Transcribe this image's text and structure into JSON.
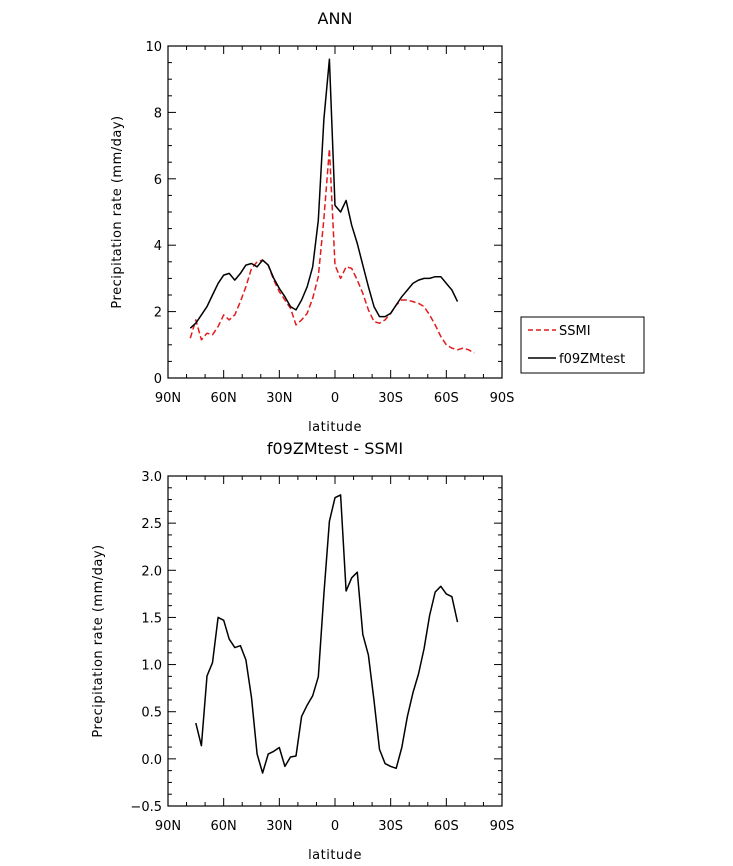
{
  "chart_data": [
    {
      "type": "line",
      "title": "ANN",
      "xlabel": "latitude",
      "ylabel": "Precipitation rate (mm/day)",
      "xlim": [
        90,
        -90
      ],
      "ylim": [
        0,
        10
      ],
      "x_ticks": [
        90,
        60,
        30,
        0,
        -30,
        -60,
        -90
      ],
      "x_tick_labels": [
        "90N",
        "60N",
        "30N",
        "0",
        "30S",
        "60S",
        "90S"
      ],
      "y_ticks": [
        0,
        2,
        4,
        6,
        8,
        10
      ],
      "y_tick_labels": [
        "0",
        "2",
        "4",
        "6",
        "8",
        "10"
      ],
      "legend_position": "right",
      "series": [
        {
          "name": "SSMI",
          "color": "#e41a1c",
          "dash": "dashed",
          "x": [
            78,
            75,
            72,
            69,
            66,
            63,
            60,
            57,
            54,
            51,
            48,
            45,
            42,
            39,
            36,
            33,
            30,
            27,
            24,
            21,
            18,
            15,
            12,
            9,
            6,
            3,
            0,
            -3,
            -6,
            -9,
            -12,
            -15,
            -18,
            -21,
            -24,
            -27,
            -30,
            -33,
            -36,
            -39,
            -42,
            -45,
            -48,
            -51,
            -54,
            -57,
            -60,
            -63,
            -66,
            -69,
            -72,
            -75
          ],
          "y": [
            1.2,
            1.75,
            1.15,
            1.35,
            1.3,
            1.55,
            1.9,
            1.75,
            1.9,
            2.3,
            2.75,
            3.3,
            3.5,
            3.55,
            3.4,
            2.95,
            2.6,
            2.35,
            2.1,
            1.6,
            1.75,
            1.95,
            2.4,
            3.05,
            4.8,
            6.9,
            3.4,
            3.0,
            3.35,
            3.3,
            2.95,
            2.55,
            2.05,
            1.7,
            1.65,
            1.75,
            1.95,
            2.2,
            2.35,
            2.35,
            2.3,
            2.25,
            2.15,
            1.9,
            1.6,
            1.25,
            1.0,
            0.9,
            0.85,
            0.9,
            0.85,
            0.75
          ]
        },
        {
          "name": "f09ZMtest",
          "color": "#000000",
          "dash": "solid",
          "x": [
            78,
            75,
            72,
            69,
            66,
            63,
            60,
            57,
            54,
            51,
            48,
            45,
            42,
            39,
            36,
            33,
            30,
            27,
            24,
            21,
            18,
            15,
            12,
            9,
            6,
            3,
            0,
            -3,
            -6,
            -9,
            -12,
            -15,
            -18,
            -21,
            -24,
            -27,
            -30,
            -33,
            -36,
            -39,
            -42,
            -45,
            -48,
            -51,
            -54,
            -57,
            -60,
            -63,
            -66
          ],
          "y": [
            1.5,
            1.65,
            1.9,
            2.15,
            2.5,
            2.85,
            3.1,
            3.15,
            2.95,
            3.15,
            3.4,
            3.45,
            3.35,
            3.55,
            3.4,
            3.0,
            2.7,
            2.45,
            2.15,
            2.05,
            2.35,
            2.75,
            3.35,
            4.75,
            7.8,
            9.6,
            5.2,
            5.0,
            5.35,
            4.6,
            4.05,
            3.4,
            2.75,
            2.15,
            1.85,
            1.85,
            1.95,
            2.2,
            2.45,
            2.65,
            2.85,
            2.95,
            3.0,
            3.0,
            3.05,
            3.05,
            2.85,
            2.65,
            2.3
          ]
        }
      ]
    },
    {
      "type": "line",
      "title": "f09ZMtest - SSMI",
      "xlabel": "latitude",
      "ylabel": "Precipitation rate (mm/day)",
      "xlim": [
        90,
        -90
      ],
      "ylim": [
        -0.5,
        3.0
      ],
      "x_ticks": [
        90,
        60,
        30,
        0,
        -30,
        -60,
        -90
      ],
      "x_tick_labels": [
        "90N",
        "60N",
        "30N",
        "0",
        "30S",
        "60S",
        "90S"
      ],
      "y_ticks": [
        -0.5,
        0.0,
        0.5,
        1.0,
        1.5,
        2.0,
        2.5,
        3.0
      ],
      "y_tick_labels": [
        "-0.5",
        "0.0",
        "0.5",
        "1.0",
        "1.5",
        "2.0",
        "2.5",
        "3.0"
      ],
      "series": [
        {
          "color": "#000000",
          "dash": "solid",
          "x": [
            75,
            72,
            69,
            66,
            63,
            60,
            57,
            54,
            51,
            48,
            45,
            42,
            39,
            36,
            33,
            30,
            27,
            24,
            21,
            18,
            15,
            12,
            9,
            6,
            3,
            0,
            -3,
            -6,
            -9,
            -12,
            -15,
            -18,
            -21,
            -24,
            -27,
            -30,
            -33,
            -36,
            -39,
            -42,
            -45,
            -48,
            -51,
            -54,
            -57,
            -60,
            -63,
            -66
          ],
          "y": [
            0.38,
            0.14,
            0.88,
            1.02,
            1.5,
            1.47,
            1.27,
            1.18,
            1.2,
            1.05,
            0.65,
            0.05,
            -0.15,
            0.05,
            0.08,
            0.12,
            -0.08,
            0.02,
            0.03,
            0.45,
            0.57,
            0.67,
            0.87,
            1.75,
            2.52,
            2.77,
            2.8,
            1.78,
            1.92,
            1.98,
            1.32,
            1.1,
            0.62,
            0.1,
            -0.05,
            -0.08,
            -0.1,
            0.12,
            0.45,
            0.7,
            0.9,
            1.17,
            1.52,
            1.77,
            1.83,
            1.75,
            1.72,
            1.45
          ]
        }
      ]
    }
  ]
}
